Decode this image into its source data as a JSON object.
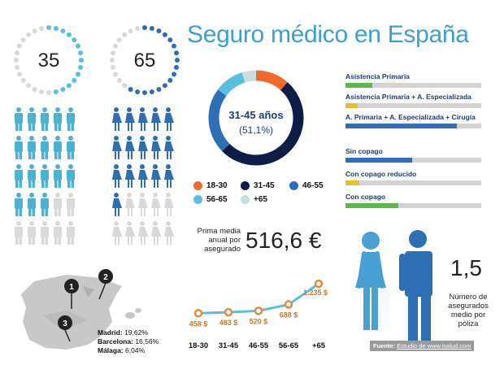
{
  "title": "Seguro médico en España",
  "ages": {
    "min": "35",
    "max": "65"
  },
  "donut": {
    "main": "31-45 años",
    "sub": "(51,1%)",
    "segments": [
      {
        "label": "18-30",
        "pct": 11.5,
        "color": "#f06a2c"
      },
      {
        "label": "31-45",
        "pct": 51.1,
        "color": "#0e1d45"
      },
      {
        "label": "46-55",
        "pct": 22.5,
        "color": "#2f6fb5"
      },
      {
        "label": "56-65",
        "pct": 10.0,
        "color": "#5bbde0"
      },
      {
        "label": "+65",
        "pct": 4.9,
        "color": "#c9dede"
      }
    ]
  },
  "coverage_bars": [
    {
      "label": "Asistencia Primaria",
      "fill": 0.2,
      "color": "#5cb848"
    },
    {
      "label": "Asistencia Primaria + A. Especializada",
      "fill": 0.09,
      "color": "#e3c22a"
    },
    {
      "label": "A. Primaria + A. Especializada + Cirugía",
      "fill": 0.82,
      "color": "#2f6fb5"
    }
  ],
  "copago_bars": [
    {
      "label": "Sin copago",
      "fill": 0.49,
      "color": "#2f6fb5"
    },
    {
      "label": "Con copago reducido",
      "fill": 0.1,
      "color": "#e3c22a"
    },
    {
      "label": "Con copago",
      "fill": 0.39,
      "color": "#5cb848"
    }
  ],
  "prima": {
    "label_lines": [
      "Prima media",
      "anual por",
      "asegurado"
    ],
    "value": "516,6 €"
  },
  "chart_data": {
    "type": "line",
    "categories": [
      "18-30",
      "31-45",
      "46-55",
      "56-65",
      "+65"
    ],
    "values": [
      458,
      483,
      520,
      688,
      1235
    ],
    "value_labels": [
      "458 $",
      "483 $",
      "520 $",
      "688 $",
      "1.235 $"
    ],
    "xlabel": "",
    "ylabel": "",
    "ylim": [
      400,
      1300
    ],
    "grid": false,
    "line_color": "#5bbde0",
    "marker_color": "#e8893a"
  },
  "asegurados": {
    "value": "1,5",
    "label_lines": [
      "Número de",
      "asegurados",
      "medio por",
      "póliza"
    ]
  },
  "fuente": {
    "label": "Fuente:",
    "text": "Estudio de www.isalud.com"
  },
  "cities": [
    {
      "num": "1",
      "name": "Madrid:",
      "pct": "19,62%"
    },
    {
      "num": "2",
      "name": "Barcelona:",
      "pct": "16,56%"
    },
    {
      "num": "3",
      "name": "Málaga:",
      "pct": "6,04%"
    }
  ],
  "people": {
    "male_color": "#4cb2d4",
    "female_color": "#2e6eb3",
    "gray": "#d9d9d9",
    "male_filled": 18,
    "female_filled": 16
  }
}
